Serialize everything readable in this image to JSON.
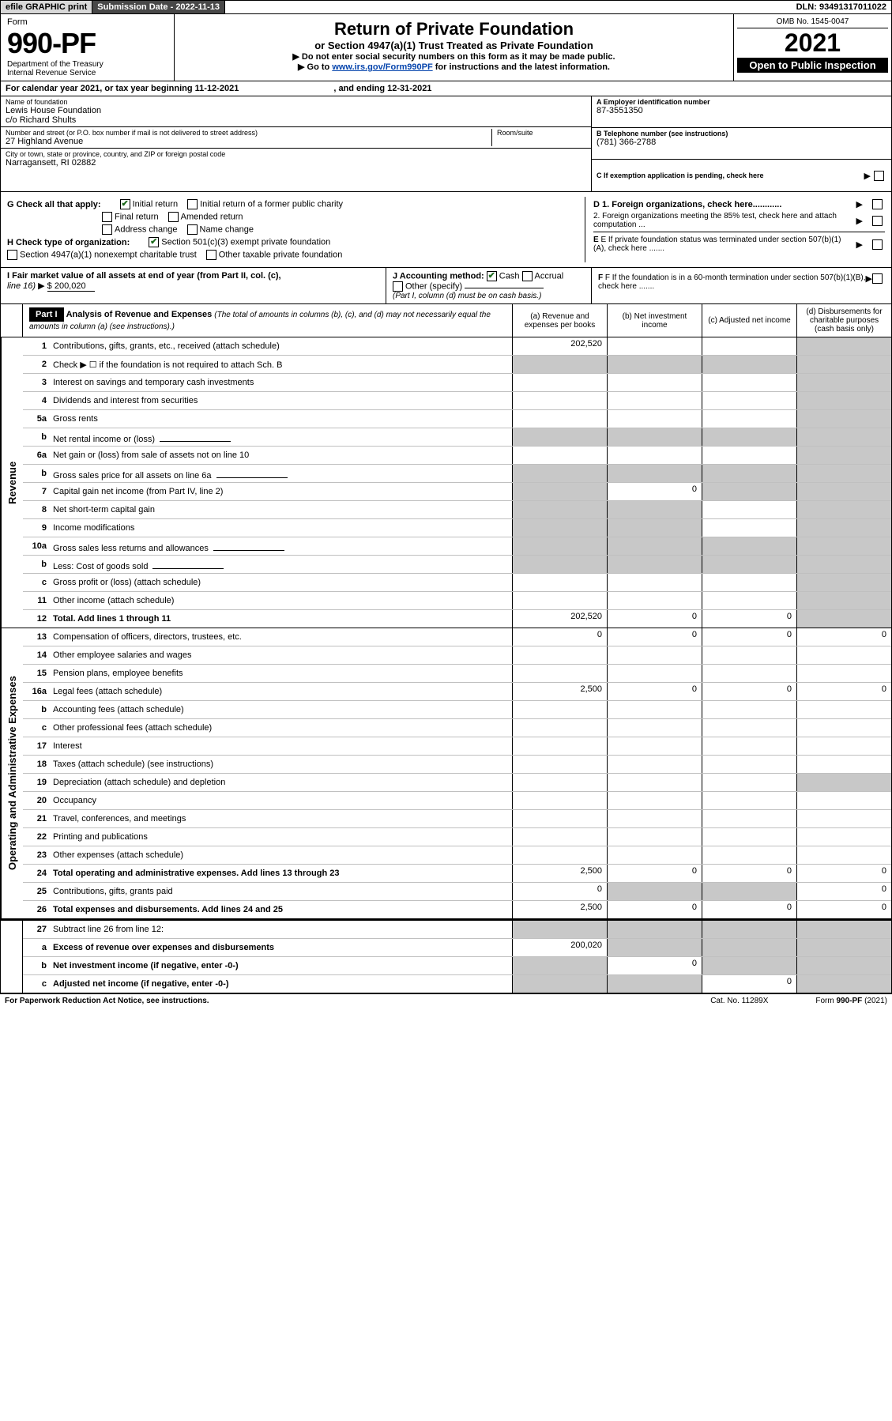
{
  "topbar": {
    "efile": "efile GRAPHIC print",
    "subdate_label": "Submission Date - 2022-11-13",
    "dln": "DLN: 93491317011022"
  },
  "header": {
    "form_label": "Form",
    "form_no": "990-PF",
    "dept": "Department of the Treasury\nInternal Revenue Service",
    "title": "Return of Private Foundation",
    "subtitle": "or Section 4947(a)(1) Trust Treated as Private Foundation",
    "instr1": "▶ Do not enter social security numbers on this form as it may be made public.",
    "instr2_pre": "▶ Go to ",
    "instr2_link": "www.irs.gov/Form990PF",
    "instr2_post": " for instructions and the latest information.",
    "omb": "OMB No. 1545-0047",
    "year": "2021",
    "openpub": "Open to Public Inspection"
  },
  "calyear": {
    "text": "For calendar year 2021, or tax year beginning 11-12-2021",
    "ending": ", and ending 12-31-2021"
  },
  "info": {
    "name_lbl": "Name of foundation",
    "name": "Lewis House Foundation",
    "name2": "c/o Richard Shults",
    "addr_lbl": "Number and street (or P.O. box number if mail is not delivered to street address)",
    "addr": "27 Highland Avenue",
    "room_lbl": "Room/suite",
    "city_lbl": "City or town, state or province, country, and ZIP or foreign postal code",
    "city": "Narragansett, RI  02882",
    "ein_lbl": "A Employer identification number",
    "ein": "87-3551350",
    "tel_lbl": "B Telephone number (see instructions)",
    "tel": "(781) 366-2788",
    "c_lbl": "C If exemption application is pending, check here"
  },
  "checks": {
    "g_label": "G Check all that apply:",
    "initial": "Initial return",
    "initial_former": "Initial return of a former public charity",
    "final": "Final return",
    "amended": "Amended return",
    "addrchg": "Address change",
    "namechg": "Name change",
    "h_label": "H Check type of organization:",
    "h_501c3": "Section 501(c)(3) exempt private foundation",
    "h_4947": "Section 4947(a)(1) nonexempt charitable trust",
    "h_other": "Other taxable private foundation",
    "d1": "D 1. Foreign organizations, check here............",
    "d2": "2. Foreign organizations meeting the 85% test, check here and attach computation ...",
    "e": "E  If private foundation status was terminated under section 507(b)(1)(A), check here .......",
    "f": "F  If the foundation is in a 60-month termination under section 507(b)(1)(B), check here ......."
  },
  "hij": {
    "i_label": "I Fair market value of all assets at end of year (from Part II, col. (c),",
    "i_line": "line 16)",
    "i_val": "$  200,020",
    "j_label": "J Accounting method:",
    "j_cash": "Cash",
    "j_accrual": "Accrual",
    "j_other": "Other (specify)",
    "j_note": "(Part I, column (d) must be on cash basis.)"
  },
  "part1": {
    "label": "Part I",
    "title": "Analysis of Revenue and Expenses",
    "note": "(The total of amounts in columns (b), (c), and (d) may not necessarily equal the amounts in column (a) (see instructions).)",
    "cols": {
      "a": "(a)   Revenue and expenses per books",
      "b": "(b)   Net investment income",
      "c": "(c)   Adjusted net income",
      "d": "(d)  Disbursements for charitable purposes (cash basis only)"
    }
  },
  "sections": {
    "revenue": "Revenue",
    "opex": "Operating and Administrative Expenses"
  },
  "lines": {
    "1": {
      "desc": "Contributions, gifts, grants, etc., received (attach schedule)",
      "a": "202,520"
    },
    "2": {
      "desc": "Check ▶ ☐ if the foundation is not required to attach Sch. B"
    },
    "3": {
      "desc": "Interest on savings and temporary cash investments"
    },
    "4": {
      "desc": "Dividends and interest from securities"
    },
    "5a": {
      "desc": "Gross rents"
    },
    "5b": {
      "desc": "Net rental income or (loss)"
    },
    "6a": {
      "desc": "Net gain or (loss) from sale of assets not on line 10"
    },
    "6b": {
      "desc": "Gross sales price for all assets on line 6a"
    },
    "7": {
      "desc": "Capital gain net income (from Part IV, line 2)",
      "b": "0"
    },
    "8": {
      "desc": "Net short-term capital gain"
    },
    "9": {
      "desc": "Income modifications"
    },
    "10a": {
      "desc": "Gross sales less returns and allowances"
    },
    "10b": {
      "desc": "Less: Cost of goods sold"
    },
    "10c": {
      "desc": "Gross profit or (loss) (attach schedule)"
    },
    "11": {
      "desc": "Other income (attach schedule)"
    },
    "12": {
      "desc": "Total. Add lines 1 through 11",
      "a": "202,520",
      "b": "0",
      "c": "0"
    },
    "13": {
      "desc": "Compensation of officers, directors, trustees, etc.",
      "a": "0",
      "b": "0",
      "c": "0",
      "d": "0"
    },
    "14": {
      "desc": "Other employee salaries and wages"
    },
    "15": {
      "desc": "Pension plans, employee benefits"
    },
    "16a": {
      "desc": "Legal fees (attach schedule)",
      "a": "2,500",
      "b": "0",
      "c": "0",
      "d": "0"
    },
    "16b": {
      "desc": "Accounting fees (attach schedule)"
    },
    "16c": {
      "desc": "Other professional fees (attach schedule)"
    },
    "17": {
      "desc": "Interest"
    },
    "18": {
      "desc": "Taxes (attach schedule) (see instructions)"
    },
    "19": {
      "desc": "Depreciation (attach schedule) and depletion"
    },
    "20": {
      "desc": "Occupancy"
    },
    "21": {
      "desc": "Travel, conferences, and meetings"
    },
    "22": {
      "desc": "Printing and publications"
    },
    "23": {
      "desc": "Other expenses (attach schedule)"
    },
    "24": {
      "desc": "Total operating and administrative expenses. Add lines 13 through 23",
      "a": "2,500",
      "b": "0",
      "c": "0",
      "d": "0"
    },
    "25": {
      "desc": "Contributions, gifts, grants paid",
      "a": "0",
      "d": "0"
    },
    "26": {
      "desc": "Total expenses and disbursements. Add lines 24 and 25",
      "a": "2,500",
      "b": "0",
      "c": "0",
      "d": "0"
    },
    "27": {
      "desc": "Subtract line 26 from line 12:"
    },
    "27a": {
      "desc": "Excess of revenue over expenses and disbursements",
      "a": "200,020"
    },
    "27b": {
      "desc": "Net investment income (if negative, enter -0-)",
      "b": "0"
    },
    "27c": {
      "desc": "Adjusted net income (if negative, enter -0-)",
      "c": "0"
    }
  },
  "footer": {
    "left": "For Paperwork Reduction Act Notice, see instructions.",
    "mid": "Cat. No. 11289X",
    "right": "Form 990-PF (2021)"
  },
  "colors": {
    "grey_cell": "#c8c8c8",
    "link": "#0645ad"
  }
}
